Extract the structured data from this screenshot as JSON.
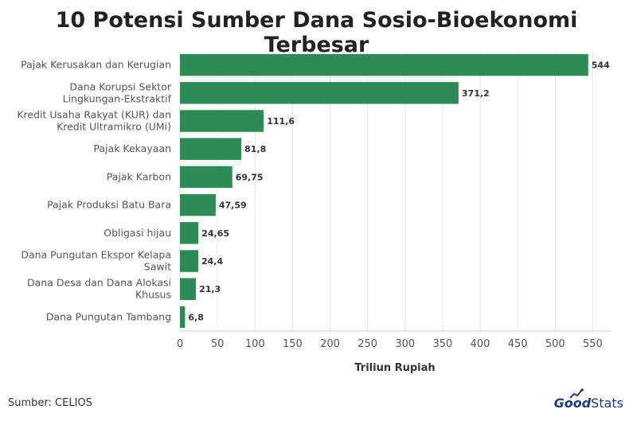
{
  "title": "10 Potensi Sumber Dana Sosio-Bioekonomi Terbesar",
  "source": "Sumber: CELIOS",
  "brand": {
    "part1": "Good",
    "part2": "Stats"
  },
  "colors": {
    "bar": "#2e8b57",
    "grid": "#e6e6e6",
    "brand": "#1f3a7a"
  },
  "chart_data": {
    "type": "bar",
    "orientation": "horizontal",
    "categories": [
      "Pajak Kerusakan dan Kerugian",
      "Dana Korupsi Sektor Lingkungan-Ekstraktif",
      "Kredit Usaha Rakyat (KUR) dan Kredit Ultramikro (UMi)",
      "Pajak Kekayaan",
      "Pajak Karbon",
      "Pajak Produksi Batu Bara",
      "Obligasi hijau",
      "Dana Pungutan Ekspor Kelapa Sawit",
      "Dana Desa dan Dana Alokasi Khusus",
      "Dana Pungutan Tambang"
    ],
    "category_lines": [
      [
        "Pajak Kerusakan dan Kerugian"
      ],
      [
        "Dana Korupsi Sektor",
        "Lingkungan-Ekstraktif"
      ],
      [
        "Kredit Usaha Rakyat (KUR) dan",
        "Kredit Ultramikro (UMi)"
      ],
      [
        "Pajak Kekayaan"
      ],
      [
        "Pajak Karbon"
      ],
      [
        "Pajak Produksi Batu Bara"
      ],
      [
        "Obligasi hijau"
      ],
      [
        "Dana Pungutan Ekspor Kelapa",
        "Sawit"
      ],
      [
        "Dana Desa dan Dana Alokasi",
        "Khusus"
      ],
      [
        "Dana Pungutan Tambang"
      ]
    ],
    "values": [
      544,
      371.2,
      111.6,
      81.8,
      69.75,
      47.59,
      24.65,
      24.4,
      21.3,
      6.8
    ],
    "value_labels": [
      "544",
      "371,2",
      "111,6",
      "81,8",
      "69,75",
      "47,59",
      "24,65",
      "24,4",
      "21,3",
      "6,8"
    ],
    "xlabel": "Triliun Rupiah",
    "xlim": [
      0,
      575
    ],
    "xticks": [
      0,
      50,
      100,
      150,
      200,
      250,
      300,
      350,
      400,
      450,
      500,
      550
    ],
    "grid": true
  }
}
